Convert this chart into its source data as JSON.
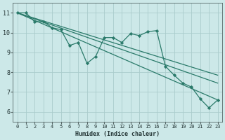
{
  "xlabel": "Humidex (Indice chaleur)",
  "bg_color": "#cce8e8",
  "grid_color": "#aacccc",
  "line_color": "#2a7a6a",
  "xlim": [
    -0.5,
    23.5
  ],
  "ylim": [
    5.5,
    11.5
  ],
  "xticks": [
    0,
    1,
    2,
    3,
    4,
    5,
    6,
    7,
    8,
    9,
    10,
    11,
    12,
    13,
    14,
    15,
    16,
    17,
    18,
    19,
    20,
    21,
    22,
    23
  ],
  "yticks": [
    6,
    7,
    8,
    9,
    10,
    11
  ],
  "series_main": {
    "x": [
      0,
      1,
      2,
      3,
      4,
      5,
      6,
      7,
      8,
      9,
      10,
      11,
      12,
      13,
      14,
      15,
      16,
      17,
      18,
      19,
      20,
      21,
      22,
      23
    ],
    "y": [
      11.0,
      11.0,
      10.55,
      10.55,
      10.25,
      10.15,
      9.35,
      9.5,
      8.45,
      8.8,
      9.75,
      9.75,
      9.5,
      9.95,
      9.85,
      10.05,
      10.1,
      8.3,
      7.85,
      7.45,
      7.25,
      6.65,
      6.2,
      6.6
    ]
  },
  "line2_start_y": 11.0,
  "line2_end_x": 23,
  "line2_end_y": 6.6,
  "line3_start_y": 11.0,
  "line3_end_x": 23,
  "line3_end_y": 7.45,
  "line4_start_y": 11.0,
  "line4_end_x": 23,
  "line4_end_y": 7.85
}
